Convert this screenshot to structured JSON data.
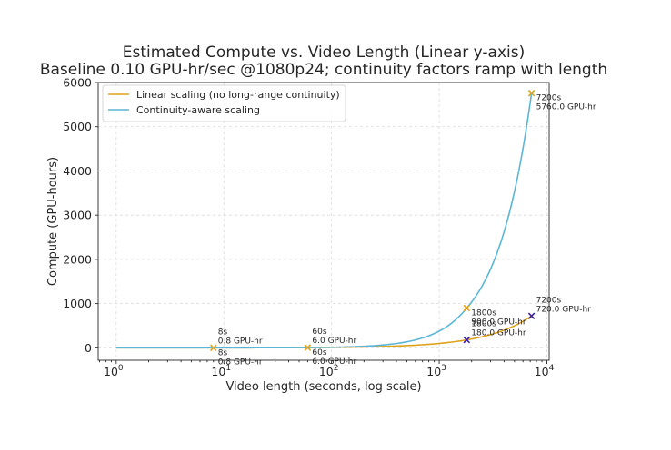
{
  "chart_data": {
    "type": "line",
    "title": "Estimated Compute vs. Video Length (Linear y-axis)",
    "subtitle": "Baseline 0.10 GPU-hr/sec @1080p24; continuity factors ramp with length",
    "xlabel": "Video length (seconds, log scale)",
    "ylabel": "Compute (GPU-hours)",
    "x_scale": "log",
    "xlim": [
      0.68,
      10500
    ],
    "ylim": [
      -280,
      6000
    ],
    "x_ticks": [
      {
        "value": 1,
        "base": "10",
        "exp": "0"
      },
      {
        "value": 10,
        "base": "10",
        "exp": "1"
      },
      {
        "value": 100,
        "base": "10",
        "exp": "2"
      },
      {
        "value": 1000,
        "base": "10",
        "exp": "3"
      },
      {
        "value": 10000,
        "base": "10",
        "exp": "4"
      }
    ],
    "y_ticks": [
      0,
      1000,
      2000,
      3000,
      4000,
      5000,
      6000
    ],
    "grid": true,
    "legend_position": "top-left",
    "series": [
      {
        "name": "Linear scaling (no long-range continuity)",
        "color": "#e0a21a",
        "x": [
          1,
          8,
          60,
          1800,
          7200
        ],
        "y": [
          0.1,
          0.8,
          6.0,
          180.0,
          720.0
        ]
      },
      {
        "name": "Continuity-aware scaling",
        "color": "#5bb6d6",
        "x": [
          1,
          8,
          60,
          1800,
          7200
        ],
        "y": [
          0.1,
          0.8,
          6.0,
          900.0,
          5760.0
        ]
      }
    ],
    "markers": [
      {
        "x": 8,
        "y": 0.8,
        "color": "#e0a21a"
      },
      {
        "x": 60,
        "y": 6.0,
        "color": "#e0a21a"
      },
      {
        "x": 1800,
        "y": 900.0,
        "color": "#e0a21a"
      },
      {
        "x": 7200,
        "y": 5760.0,
        "color": "#e0a21a"
      },
      {
        "x": 1800,
        "y": 180.0,
        "color": "#3b1fa3"
      },
      {
        "x": 7200,
        "y": 720.0,
        "color": "#3b1fa3"
      }
    ],
    "annotations": [
      {
        "x": 8,
        "y": 0.8,
        "line1": "8s",
        "line2": "0.8 GPU-hr",
        "pos": "above"
      },
      {
        "x": 8,
        "y": 0.8,
        "line1": "8s",
        "line2": "0.8 GPU-hr",
        "pos": "below"
      },
      {
        "x": 60,
        "y": 6.0,
        "line1": "60s",
        "line2": "6.0 GPU-hr",
        "pos": "above"
      },
      {
        "x": 60,
        "y": 6.0,
        "line1": "60s",
        "line2": "6.0 GPU-hr",
        "pos": "below"
      },
      {
        "x": 1800,
        "y": 900.0,
        "line1": "1800s",
        "line2": "900.0 GPU-hr",
        "pos": "below"
      },
      {
        "x": 1800,
        "y": 180.0,
        "line1": "1800s",
        "line2": "180.0 GPU-hr",
        "pos": "above"
      },
      {
        "x": 7200,
        "y": 5760.0,
        "line1": "7200s",
        "line2": "5760.0 GPU-hr",
        "pos": "below"
      },
      {
        "x": 7200,
        "y": 720.0,
        "line1": "7200s",
        "line2": "720.0 GPU-hr",
        "pos": "above"
      }
    ]
  }
}
